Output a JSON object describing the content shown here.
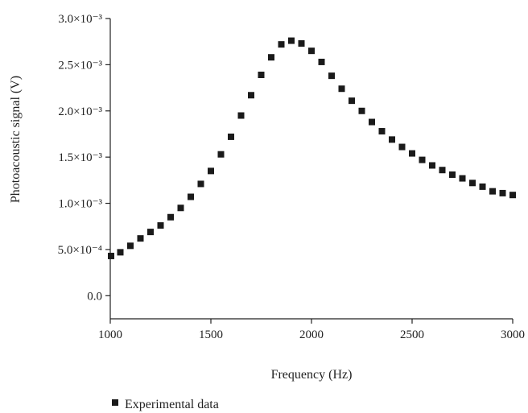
{
  "chart_data": {
    "type": "scatter",
    "xlabel": "Frequency (Hz)",
    "ylabel": "Photoacoustic signal (V)",
    "xlim": [
      1000,
      3000
    ],
    "ylim": [
      -0.00025,
      0.003
    ],
    "x_ticks": [
      {
        "value": 1000,
        "label": "1000"
      },
      {
        "value": 1500,
        "label": "1500"
      },
      {
        "value": 2000,
        "label": "2000"
      },
      {
        "value": 2500,
        "label": "2500"
      },
      {
        "value": 3000,
        "label": "3000"
      }
    ],
    "y_ticks": [
      {
        "value": 0.0,
        "label": "0.0"
      },
      {
        "value": 0.0005,
        "label": "5.0×10⁻⁴"
      },
      {
        "value": 0.001,
        "label": "1.0×10⁻³"
      },
      {
        "value": 0.0015,
        "label": "1.5×10⁻³"
      },
      {
        "value": 0.002,
        "label": "2.0×10⁻³"
      },
      {
        "value": 0.0025,
        "label": "2.5×10⁻³"
      },
      {
        "value": 0.003,
        "label": "3.0×10⁻³"
      }
    ],
    "grid": false,
    "legend": {
      "position": "bottom-left"
    },
    "series": [
      {
        "name": "Experimental data",
        "color": "#1a1a1a",
        "marker": "square",
        "x": [
          1000,
          1050,
          1100,
          1150,
          1200,
          1250,
          1300,
          1350,
          1400,
          1450,
          1500,
          1550,
          1600,
          1650,
          1700,
          1750,
          1800,
          1850,
          1900,
          1950,
          2000,
          2050,
          2100,
          2150,
          2200,
          2250,
          2300,
          2350,
          2400,
          2450,
          2500,
          2550,
          2600,
          2650,
          2700,
          2750,
          2800,
          2850,
          2900,
          2950,
          3000
        ],
        "y": [
          0.00043,
          0.00047,
          0.00054,
          0.00062,
          0.00069,
          0.00076,
          0.00085,
          0.00095,
          0.00107,
          0.00121,
          0.00135,
          0.00153,
          0.00172,
          0.00195,
          0.00217,
          0.00239,
          0.00258,
          0.00272,
          0.00276,
          0.00273,
          0.00265,
          0.00253,
          0.00238,
          0.00224,
          0.00211,
          0.002,
          0.00188,
          0.00178,
          0.00169,
          0.00161,
          0.00154,
          0.00147,
          0.00141,
          0.00136,
          0.00131,
          0.00127,
          0.00122,
          0.00118,
          0.00113,
          0.00111,
          0.00109
        ]
      }
    ]
  }
}
